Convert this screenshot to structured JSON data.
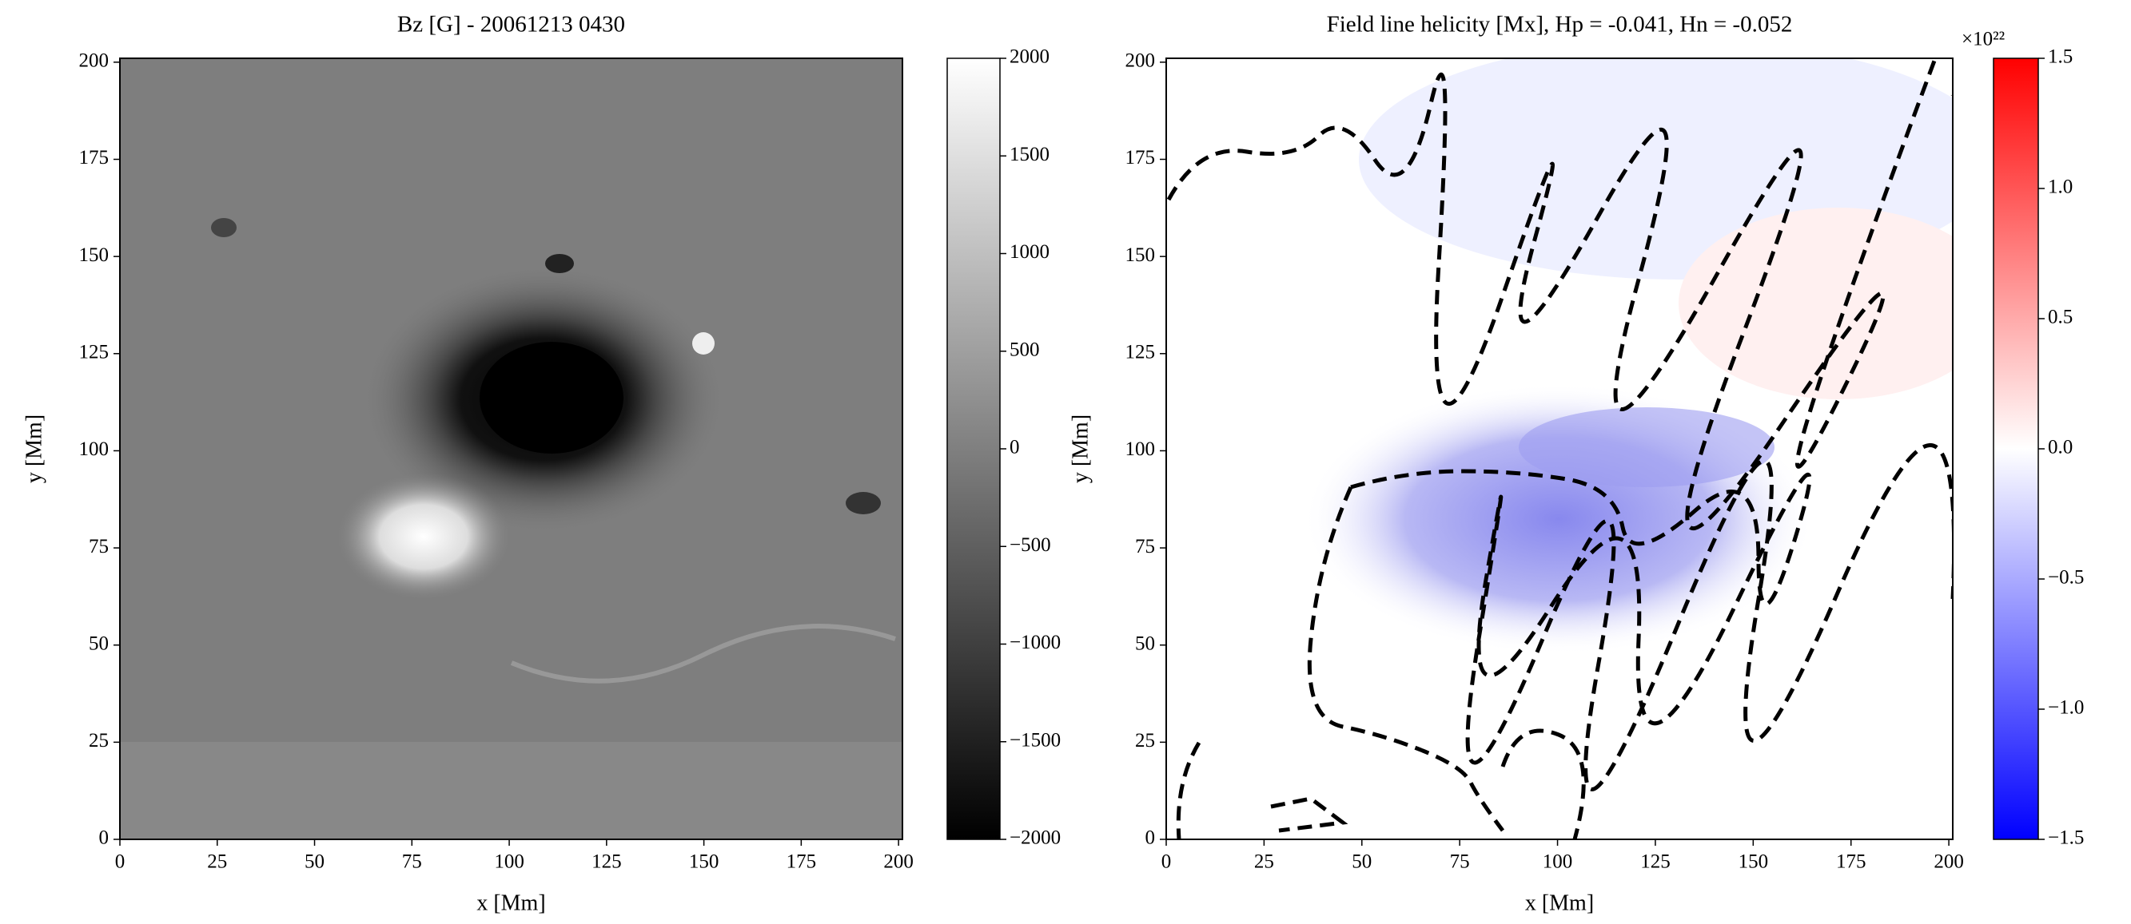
{
  "chart_data": [
    {
      "type": "heatmap",
      "title": "Bz [G] - 20061213 0430",
      "xlabel": "x [Mm]",
      "ylabel": "y [Mm]",
      "xlim": [
        0,
        201
      ],
      "ylim": [
        0,
        201
      ],
      "xticks": [
        0,
        25,
        50,
        75,
        100,
        125,
        150,
        175,
        200
      ],
      "yticks": [
        0,
        25,
        50,
        75,
        100,
        125,
        150,
        175,
        200
      ],
      "colorbar": {
        "lim": [
          -2000,
          2000
        ],
        "colormap": [
          "#000000",
          "#ffffff"
        ],
        "ticks": [
          {
            "value": -2000,
            "label": "−2000"
          },
          {
            "value": -1500,
            "label": "−1500"
          },
          {
            "value": -1000,
            "label": "−1000"
          },
          {
            "value": -500,
            "label": "−500"
          },
          0,
          500,
          1000,
          1500,
          2000
        ]
      }
    },
    {
      "type": "heatmap",
      "title": "Field line helicity [Mx], Hp = -0.041, Hn = -0.052",
      "xlabel": "x [Mm]",
      "ylabel": "y [Mm]",
      "xlim": [
        0,
        201
      ],
      "ylim": [
        0,
        201
      ],
      "xticks": [
        0,
        25,
        50,
        75,
        100,
        125,
        150,
        175,
        200
      ],
      "yticks": [
        0,
        25,
        50,
        75,
        100,
        125,
        150,
        175,
        200
      ],
      "colorbar": {
        "lim": [
          -1.5,
          1.5
        ],
        "colormap": [
          "#0000ff",
          "#ffffff",
          "#ff0000"
        ],
        "offset_label": "×10²²",
        "ticks": [
          {
            "value": -1.5,
            "label": "−1.5"
          },
          {
            "value": -1.0,
            "label": "−1.0"
          },
          {
            "value": -0.5,
            "label": "−0.5"
          },
          {
            "value": 0.0,
            "label": "0.0"
          },
          0.5,
          {
            "value": 1.0,
            "label": "1.0"
          },
          1.5
        ]
      }
    }
  ]
}
